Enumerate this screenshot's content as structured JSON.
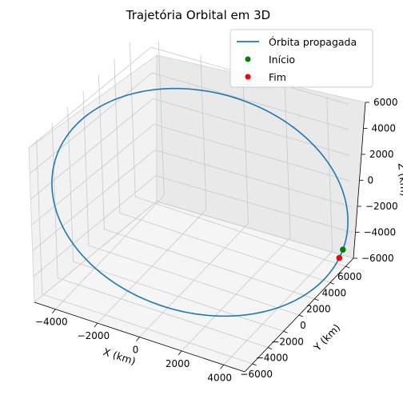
{
  "chart_data": {
    "type": "line3d",
    "title": "Trajetória Orbital em 3D",
    "xlabel": "X (km)",
    "ylabel": "Y (km)",
    "zlabel": "Z (km)",
    "xlim": [
      -5000,
      5000
    ],
    "ylim": [
      -7000,
      7000
    ],
    "zlim": [
      -6000,
      6000
    ],
    "x_ticks": [
      -4000,
      -2000,
      0,
      2000,
      4000
    ],
    "y_ticks": [
      -6000,
      -4000,
      -2000,
      0,
      2000,
      4000,
      6000
    ],
    "z_ticks": [
      -6000,
      -4000,
      -2000,
      0,
      2000,
      4000,
      6000
    ],
    "x_tick_labels": [
      "−4000",
      "−2000",
      "0",
      "2000",
      "4000"
    ],
    "y_tick_labels": [
      "−6000",
      "−4000",
      "−2000",
      "0",
      "2000",
      "4000",
      "6000"
    ],
    "z_tick_labels": [
      "−6000",
      "−4000",
      "−2000",
      "0",
      "2000",
      "4000",
      "6000"
    ],
    "grid": true,
    "legend_position": "top-right",
    "series": [
      {
        "name": "Órbita propagada",
        "kind": "line",
        "color": "#1f77b4",
        "orbit": {
          "radius_km": 6800,
          "inclination_deg": 51.6,
          "raan_deg": 0,
          "closed": true
        }
      },
      {
        "name": "Início",
        "kind": "point",
        "color": "#008000",
        "x": 6800,
        "y": 0,
        "z": 0
      },
      {
        "name": "Fim",
        "kind": "point",
        "color": "#ff0000",
        "x": 6777,
        "y": -348,
        "z": -439
      }
    ]
  }
}
